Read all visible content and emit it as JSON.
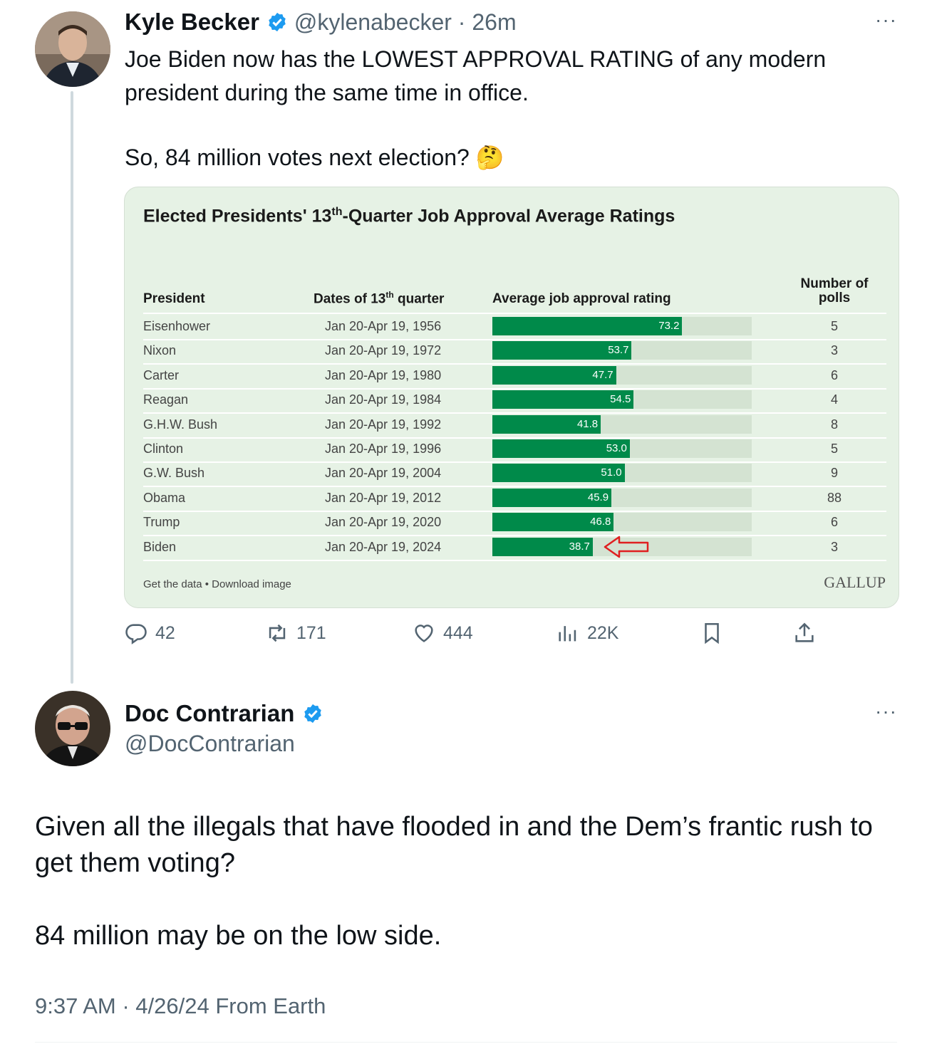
{
  "tweet1": {
    "author_name": "Kyle Becker",
    "handle": "@kylenabecker",
    "time": "26m",
    "text": "Joe Biden now has the LOWEST APPROVAL RATING of any modern president during the same time in office.",
    "text2": "So, 84 million votes next election? 🤔",
    "actions": {
      "replies": "42",
      "retweets": "171",
      "likes": "444",
      "views": "22K"
    }
  },
  "chart": {
    "title_pre": "Elected Presidents' 13",
    "title_sup": "th",
    "title_post": "-Quarter Job Approval Average Ratings",
    "col_president": "President",
    "col_dates_pre": "Dates of 13",
    "col_dates_sup": "th",
    "col_dates_post": " quarter",
    "col_rating": "Average job approval rating",
    "col_polls_1": "Number of",
    "col_polls_2": "polls",
    "footer_links": "Get the data • Download image",
    "source_logo": "GALLUP"
  },
  "chart_data": {
    "type": "bar",
    "categories": [
      "Eisenhower",
      "Nixon",
      "Carter",
      "Reagan",
      "G.H.W. Bush",
      "Clinton",
      "G.W. Bush",
      "Obama",
      "Trump",
      "Biden"
    ],
    "dates": [
      "Jan 20-Apr 19, 1956",
      "Jan 20-Apr 19, 1972",
      "Jan 20-Apr 19, 1980",
      "Jan 20-Apr 19, 1984",
      "Jan 20-Apr 19, 1992",
      "Jan 20-Apr 19, 1996",
      "Jan 20-Apr 19, 2004",
      "Jan 20-Apr 19, 2012",
      "Jan 20-Apr 19, 2020",
      "Jan 20-Apr 19, 2024"
    ],
    "values": [
      73.2,
      53.7,
      47.7,
      54.5,
      41.8,
      53.0,
      51.0,
      45.9,
      46.8,
      38.7
    ],
    "value_labels": [
      "73.2",
      "53.7",
      "47.7",
      "54.5",
      "41.8",
      "53.0",
      "51.0",
      "45.9",
      "46.8",
      "38.7"
    ],
    "polls": [
      "5",
      "3",
      "6",
      "4",
      "8",
      "5",
      "9",
      "88",
      "6",
      "3"
    ],
    "xlim": [
      0,
      100
    ],
    "bar_color": "#008a4a",
    "track_color": "#d4e3d2",
    "highlight": "Biden"
  },
  "tweet2": {
    "author_name": "Doc Contrarian",
    "handle": "@DocContrarian",
    "text1": "Given all the illegals that have flooded in and the Dem’s frantic rush to get them voting?",
    "text2": "84 million may be on the low side.",
    "timestamp": "9:37 AM · 4/26/24 From Earth"
  },
  "colors": {
    "accent": "#1d9bf0",
    "muted": "#536471",
    "card_bg": "#e6f2e5"
  },
  "icons": [
    "reply-icon",
    "retweet-icon",
    "like-icon",
    "views-icon",
    "bookmark-icon",
    "share-icon",
    "verified-badge-icon",
    "more-icon",
    "arrow-annotation-icon"
  ]
}
